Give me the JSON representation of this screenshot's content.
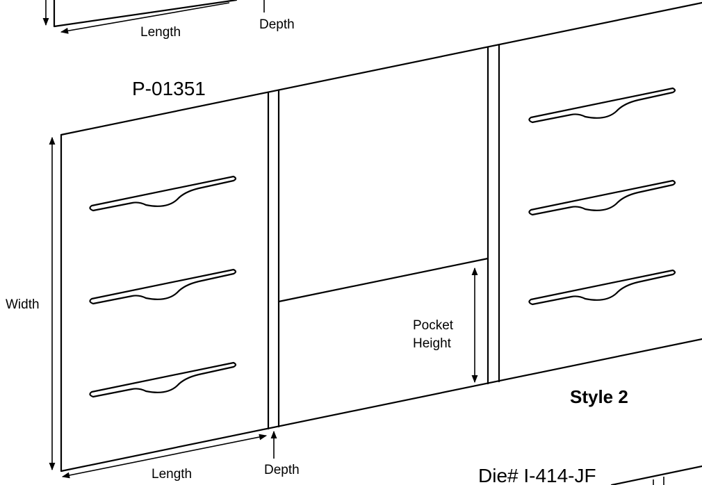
{
  "labels": {
    "top_length": "Length",
    "top_depth": "Depth",
    "part_number": "P-01351",
    "width": "Width",
    "pocket_height_line1": "Pocket",
    "pocket_height_line2": "Height",
    "style": "Style 2",
    "bottom_length": "Length",
    "bottom_depth": "Depth",
    "die_number": "Die# I-414-JF"
  }
}
